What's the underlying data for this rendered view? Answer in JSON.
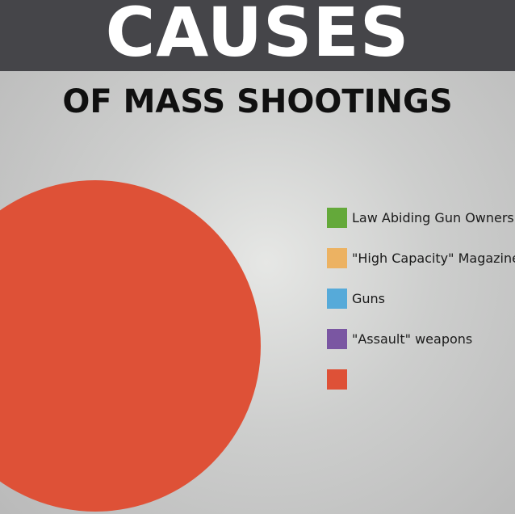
{
  "header": {
    "title": "CAUSES",
    "subtitle": "OF MASS SHOOTINGS"
  },
  "colors": {
    "header_background": "#454549",
    "title_text": "#ffffff",
    "subtitle_text": "#101010"
  },
  "chart_data": {
    "type": "pie",
    "title": "CAUSES",
    "subtitle": "OF MASS SHOOTINGS",
    "legend_position": "right",
    "slices": [
      {
        "label": "Law Abiding Gun Owners",
        "value": 0,
        "color": "#64a93a"
      },
      {
        "label": "\"High Capacity\" Magazines",
        "value": 0,
        "color": "#ecb262"
      },
      {
        "label": "Guns",
        "value": 0,
        "color": "#56aad9"
      },
      {
        "label": "\"Assault\" weapons",
        "value": 0,
        "color": "#7a56a2"
      },
      {
        "label": "",
        "value": 100,
        "color": "#de5137"
      }
    ]
  }
}
